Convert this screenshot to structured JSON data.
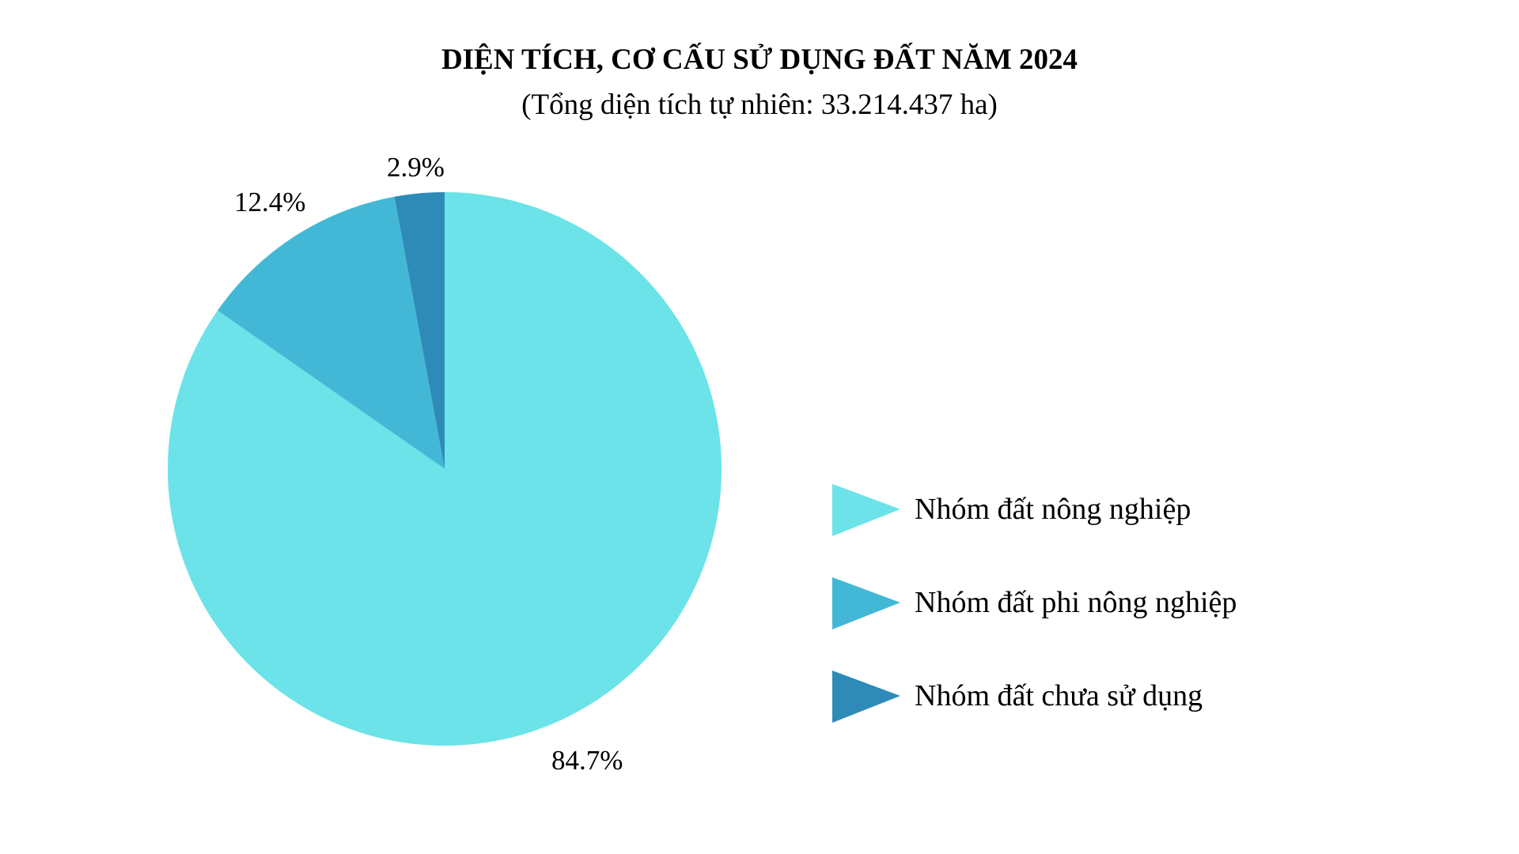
{
  "header": {
    "title": "DIỆN TÍCH, CƠ CẤU SỬ DỤNG ĐẤT NĂM 2024",
    "subtitle": "(Tổng diện tích tự nhiên: 33.214.437 ha)"
  },
  "chart_data": {
    "type": "pie",
    "title": "DIỆN TÍCH, CƠ CẤU SỬ DỤNG ĐẤT NĂM 2024",
    "subtitle": "(Tổng diện tích tự nhiên: 33.214.437 ha)",
    "categories": [
      "Nhóm đất nông nghiệp",
      "Nhóm đất phi nông nghiệp",
      "Nhóm đất chưa sử dụng"
    ],
    "values": [
      84.7,
      12.4,
      2.9
    ],
    "labels": [
      "84.7%",
      "12.4%",
      "2.9%"
    ],
    "colors": [
      "#6BE3E8",
      "#43B8D6",
      "#2E8BB8"
    ],
    "unit": "%",
    "start_angle": "12 o'clock",
    "direction": "clockwise",
    "legend_position": "right",
    "xlabel": "",
    "ylabel": ""
  },
  "legend": {
    "items": [
      {
        "label": "Nhóm đất nông nghiệp",
        "color": "#6BE3E8",
        "marker": "triangle-right"
      },
      {
        "label": "Nhóm đất phi nông nghiệp",
        "color": "#43B8D6",
        "marker": "triangle-right"
      },
      {
        "label": "Nhóm đất chưa sử dụng",
        "color": "#2E8BB8",
        "marker": "triangle-right"
      }
    ]
  },
  "slice_labels": {
    "agri": "84.7%",
    "nonagri": "12.4%",
    "unused": "2.9%"
  }
}
